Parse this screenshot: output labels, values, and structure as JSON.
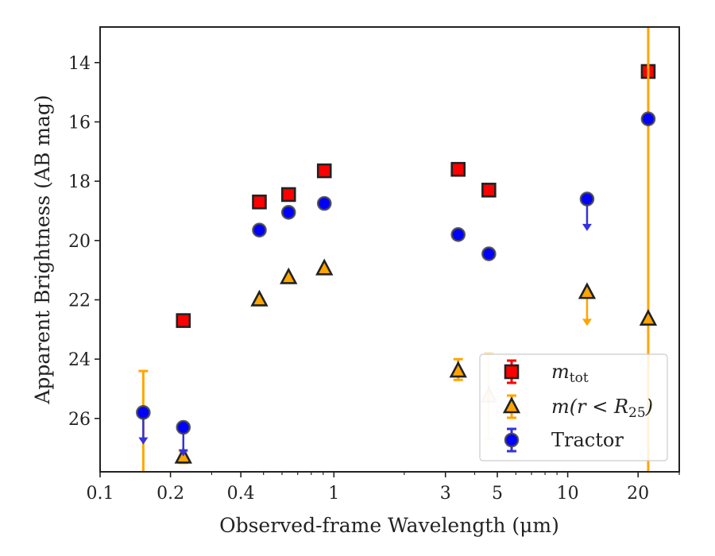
{
  "chart_data": {
    "type": "scatter",
    "title": "",
    "xlabel": "Observed-frame Wavelength (μm)",
    "ylabel": "Apparent Brightness (AB mag)",
    "xscale": "log",
    "xlim": [
      0.1,
      30
    ],
    "ylim": [
      27.8,
      12.8
    ],
    "y_inverted": true,
    "grid": false,
    "legend_position": "lower-right",
    "x_ticks": [
      {
        "value": 0.1,
        "label": "0.1"
      },
      {
        "value": 0.2,
        "label": "0.2"
      },
      {
        "value": 0.4,
        "label": "0.4"
      },
      {
        "value": 1,
        "label": "1"
      },
      {
        "value": 3,
        "label": "3"
      },
      {
        "value": 5,
        "label": "5"
      },
      {
        "value": 10,
        "label": "10"
      },
      {
        "value": 20,
        "label": "20"
      }
    ],
    "y_ticks": [
      {
        "value": 14,
        "label": "14"
      },
      {
        "value": 16,
        "label": "16"
      },
      {
        "value": 18,
        "label": "18"
      },
      {
        "value": 20,
        "label": "20"
      },
      {
        "value": 22,
        "label": "22"
      },
      {
        "value": 24,
        "label": "24"
      },
      {
        "value": 26,
        "label": "26"
      }
    ],
    "series": [
      {
        "key": "mtot",
        "name": "m_tot",
        "legend_main": "m",
        "legend_sub": "tot",
        "marker": "square",
        "color": "#ff0000",
        "edge": "#222222",
        "errcolor": "#ff0000",
        "points": [
          {
            "x": 0.227,
            "y": 22.7
          },
          {
            "x": 0.48,
            "y": 18.7
          },
          {
            "x": 0.64,
            "y": 18.45
          },
          {
            "x": 0.91,
            "y": 17.65
          },
          {
            "x": 3.4,
            "y": 17.6
          },
          {
            "x": 4.6,
            "y": 18.3
          },
          {
            "x": 22.1,
            "y": 14.3
          }
        ]
      },
      {
        "key": "mr25",
        "name": "m(r < R_25)",
        "legend_main": "m(r < R",
        "legend_sub": "25",
        "legend_tail": ")",
        "marker": "triangle",
        "color": "#ffa500",
        "edge": "#222222",
        "errcolor": "#ffa500",
        "points": [
          {
            "x": 0.227,
            "y": 27.3,
            "yerr": [
              27.1,
              27.5
            ]
          },
          {
            "x": 0.48,
            "y": 22.0
          },
          {
            "x": 0.64,
            "y": 21.25
          },
          {
            "x": 0.91,
            "y": 20.95
          },
          {
            "x": 3.4,
            "y": 24.4,
            "yerr": [
              24.0,
              24.7
            ]
          },
          {
            "x": 4.6,
            "y": 25.25,
            "yerr": [
              23.8,
              26.7
            ],
            "faded": true
          },
          {
            "x": 12.1,
            "y": 21.75,
            "upper_limit": true,
            "arrow_to": 22.8
          },
          {
            "x": 22.1,
            "y": 22.65,
            "yerr": [
              12.8,
              27.8
            ]
          }
        ]
      },
      {
        "key": "tractor",
        "name": "Tractor",
        "legend_main": "Tractor",
        "marker": "circle",
        "color": "#0000ff",
        "edge": "#444444",
        "errcolor": "#3333dd",
        "points": [
          {
            "x": 0.153,
            "y": 25.8,
            "upper_limit": true,
            "arrow_to": 26.8
          },
          {
            "x": 0.227,
            "y": 26.3,
            "upper_limit": true,
            "arrow_to": 27.2
          },
          {
            "x": 0.48,
            "y": 19.65
          },
          {
            "x": 0.64,
            "y": 19.05
          },
          {
            "x": 0.91,
            "y": 18.75
          },
          {
            "x": 3.4,
            "y": 19.8
          },
          {
            "x": 4.6,
            "y": 20.45
          },
          {
            "x": 12.1,
            "y": 18.6,
            "upper_limit": true,
            "arrow_to": 19.6
          },
          {
            "x": 22.1,
            "y": 15.9
          }
        ]
      }
    ],
    "extra_errorbars": [
      {
        "x": 0.153,
        "y_top": 24.4,
        "y_bottom": 27.8,
        "color": "#ffa500"
      }
    ]
  }
}
